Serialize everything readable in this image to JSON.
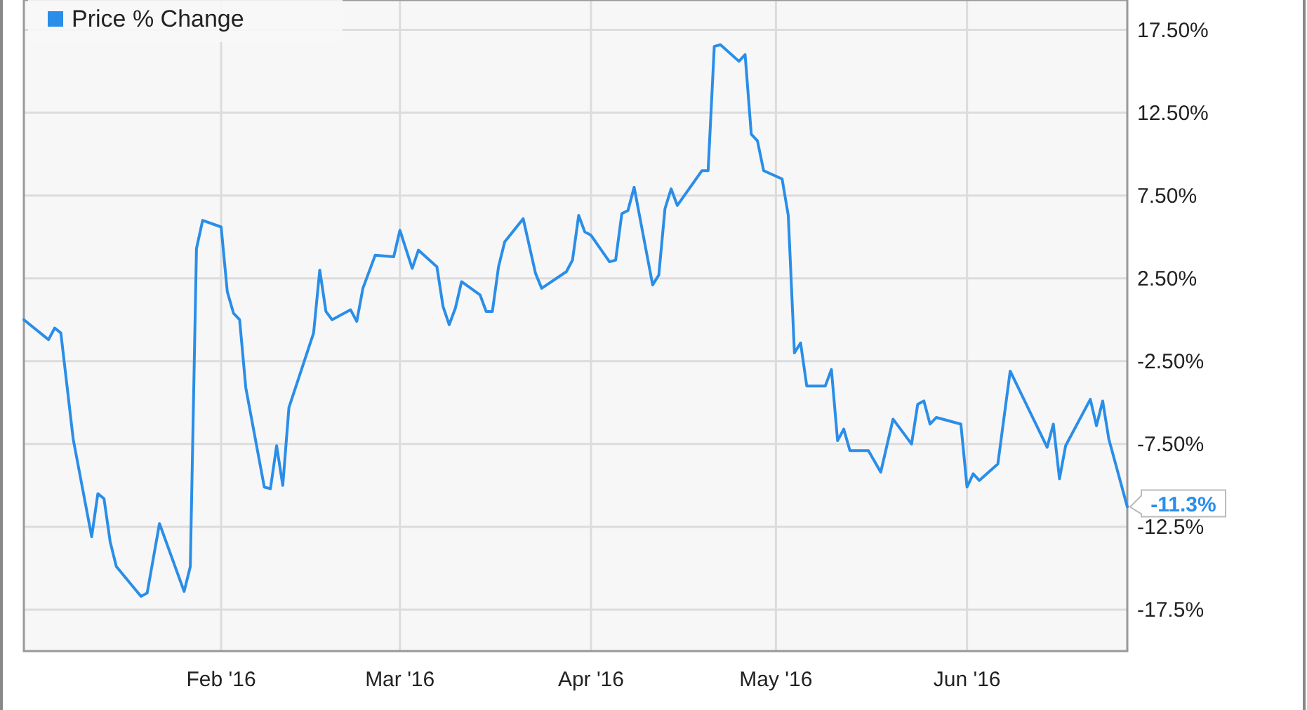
{
  "chart_data": {
    "type": "line",
    "legend": "top left",
    "grid": true,
    "marker": "none",
    "line_style": "solid",
    "xlim": [
      "2015-12-31",
      "2016-06-27"
    ],
    "ylim": [
      -20,
      19.3
    ],
    "xticks": [
      {
        "value": "2016-02-01",
        "label": "Feb '16"
      },
      {
        "value": "2016-03-01",
        "label": "Mar '16"
      },
      {
        "value": "2016-04-01",
        "label": "Apr '16"
      },
      {
        "value": "2016-05-01",
        "label": "May '16"
      },
      {
        "value": "2016-06-01",
        "label": "Jun '16"
      }
    ],
    "yticks": [
      {
        "value": 17.5,
        "label": "17.50%"
      },
      {
        "value": 12.5,
        "label": "12.50%"
      },
      {
        "value": 7.5,
        "label": "7.50%"
      },
      {
        "value": 2.5,
        "label": "2.50%"
      },
      {
        "value": -2.5,
        "label": "-2.50%"
      },
      {
        "value": -7.5,
        "label": "-7.50%"
      },
      {
        "value": -12.5,
        "label": "-12.5%"
      },
      {
        "value": -17.5,
        "label": "-17.5%"
      }
    ],
    "annotations": [
      {
        "text": "-11.3%",
        "x": "2016-06-27",
        "y": -11.3
      }
    ],
    "series": [
      {
        "name": "Price % Change",
        "color": "#2a8ee8",
        "x": [
          "2015-12-31",
          "2016-01-04",
          "2016-01-05",
          "2016-01-06",
          "2016-01-08",
          "2016-01-11",
          "2016-01-12",
          "2016-01-13",
          "2016-01-14",
          "2016-01-15",
          "2016-01-19",
          "2016-01-20",
          "2016-01-22",
          "2016-01-26",
          "2016-01-27",
          "2016-01-28",
          "2016-01-29",
          "2016-02-01",
          "2016-02-02",
          "2016-02-03",
          "2016-02-04",
          "2016-02-05",
          "2016-02-08",
          "2016-02-09",
          "2016-02-10",
          "2016-02-11",
          "2016-02-12",
          "2016-02-16",
          "2016-02-17",
          "2016-02-18",
          "2016-02-19",
          "2016-02-22",
          "2016-02-23",
          "2016-02-24",
          "2016-02-26",
          "2016-02-29",
          "2016-03-01",
          "2016-03-03",
          "2016-03-04",
          "2016-03-07",
          "2016-03-08",
          "2016-03-09",
          "2016-03-10",
          "2016-03-11",
          "2016-03-14",
          "2016-03-15",
          "2016-03-16",
          "2016-03-17",
          "2016-03-18",
          "2016-03-21",
          "2016-03-23",
          "2016-03-24",
          "2016-03-28",
          "2016-03-29",
          "2016-03-30",
          "2016-03-31",
          "2016-04-01",
          "2016-04-04",
          "2016-04-05",
          "2016-04-06",
          "2016-04-07",
          "2016-04-08",
          "2016-04-11",
          "2016-04-12",
          "2016-04-13",
          "2016-04-14",
          "2016-04-15",
          "2016-04-19",
          "2016-04-20",
          "2016-04-21",
          "2016-04-22",
          "2016-04-25",
          "2016-04-26",
          "2016-04-27",
          "2016-04-28",
          "2016-04-29",
          "2016-05-02",
          "2016-05-03",
          "2016-05-04",
          "2016-05-05",
          "2016-05-06",
          "2016-05-09",
          "2016-05-10",
          "2016-05-11",
          "2016-05-12",
          "2016-05-13",
          "2016-05-16",
          "2016-05-18",
          "2016-05-20",
          "2016-05-23",
          "2016-05-24",
          "2016-05-25",
          "2016-05-26",
          "2016-05-27",
          "2016-05-31",
          "2016-06-01",
          "2016-06-02",
          "2016-06-03",
          "2016-06-06",
          "2016-06-08",
          "2016-06-14",
          "2016-06-15",
          "2016-06-16",
          "2016-06-17",
          "2016-06-21",
          "2016-06-22",
          "2016-06-23",
          "2016-06-24",
          "2016-06-27"
        ],
        "values": [
          0.0,
          -1.2,
          -0.5,
          -0.8,
          -7.2,
          -13.1,
          -10.5,
          -10.8,
          -13.4,
          -14.9,
          -16.7,
          -16.5,
          -12.3,
          -16.4,
          -14.9,
          4.3,
          6.0,
          5.6,
          1.7,
          0.4,
          0.0,
          -4.1,
          -10.1,
          -10.2,
          -7.6,
          -10.0,
          -5.3,
          -0.8,
          3.0,
          0.5,
          0.0,
          0.6,
          -0.1,
          1.9,
          3.9,
          3.8,
          5.4,
          3.1,
          4.2,
          3.2,
          0.8,
          -0.3,
          0.7,
          2.3,
          1.5,
          0.5,
          0.5,
          3.2,
          4.7,
          6.1,
          2.8,
          1.9,
          2.9,
          3.6,
          6.3,
          5.3,
          5.1,
          3.5,
          3.6,
          6.4,
          6.6,
          8.0,
          2.1,
          2.7,
          6.7,
          7.9,
          6.9,
          9.0,
          9.0,
          16.5,
          16.6,
          15.6,
          16.0,
          11.2,
          10.8,
          9.0,
          8.5,
          6.3,
          -2.0,
          -1.4,
          -4.0,
          -4.0,
          -3.0,
          -7.3,
          -6.6,
          -7.9,
          -7.9,
          -9.2,
          -6.0,
          -7.5,
          -5.1,
          -4.9,
          -6.3,
          -5.9,
          -6.3,
          -10.1,
          -9.3,
          -9.7,
          -8.7,
          -3.1,
          -7.7,
          -6.3,
          -9.6,
          -7.6,
          -4.8,
          -6.4,
          -4.9,
          -7.2,
          -11.3
        ]
      }
    ]
  }
}
